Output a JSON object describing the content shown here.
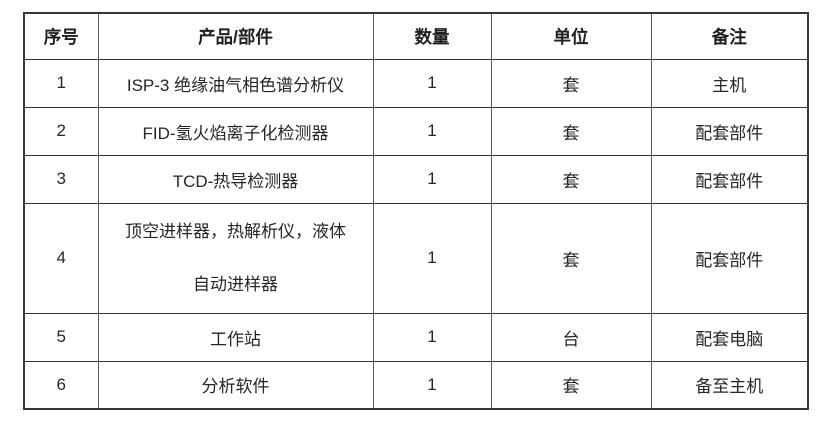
{
  "page": {
    "background_color": "#ffffff",
    "text_color": "#262626",
    "border_color": "#3f3f3f"
  },
  "table": {
    "headers": {
      "no": "序号",
      "product": "产品/部件",
      "qty": "数量",
      "unit": "单位",
      "note": "备注"
    },
    "rows": [
      {
        "no": "1",
        "product": "ISP-3 绝缘油气相色谱分析仪",
        "qty": "1",
        "unit": "套",
        "note": "主机"
      },
      {
        "no": "2",
        "product": "FID-氢火焰离子化检测器",
        "qty": "1",
        "unit": "套",
        "note": "配套部件"
      },
      {
        "no": "3",
        "product": "TCD-热导检测器",
        "qty": "1",
        "unit": "套",
        "note": "配套部件"
      },
      {
        "no": "4",
        "product": "顶空进样器，热解析仪，液体\n自动进样器",
        "qty": "1",
        "unit": "套",
        "note": "配套部件"
      },
      {
        "no": "5",
        "product": "工作站",
        "qty": "1",
        "unit": "台",
        "note": "配套电脑"
      },
      {
        "no": "6",
        "product": "分析软件",
        "qty": "1",
        "unit": "套",
        "note": "备至主机"
      }
    ]
  }
}
